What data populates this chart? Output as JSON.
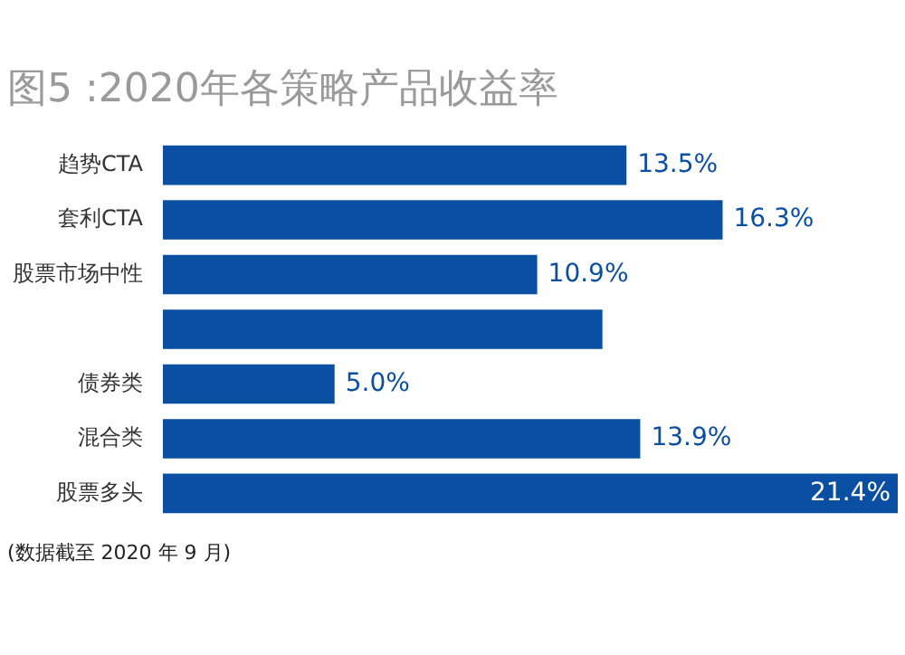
{
  "chart_data": {
    "type": "bar",
    "orientation": "horizontal",
    "title": "图5 :2020年各策略产品收益率",
    "categories": [
      "趋势CTA",
      "套利CTA",
      "股票市场中性",
      null,
      "债券类",
      "混合类",
      "股票多头"
    ],
    "values": [
      13.5,
      16.3,
      10.9,
      12.8,
      5.0,
      13.9,
      21.4
    ],
    "value_labels": [
      "13.5%",
      "16.3%",
      "10.9%",
      null,
      "5.0%",
      "13.9%",
      "21.4%"
    ],
    "color": "#0b4fa3",
    "grid": false,
    "legend": false,
    "annotations": [
      "(数据截至 2020 年 9 月)"
    ]
  }
}
